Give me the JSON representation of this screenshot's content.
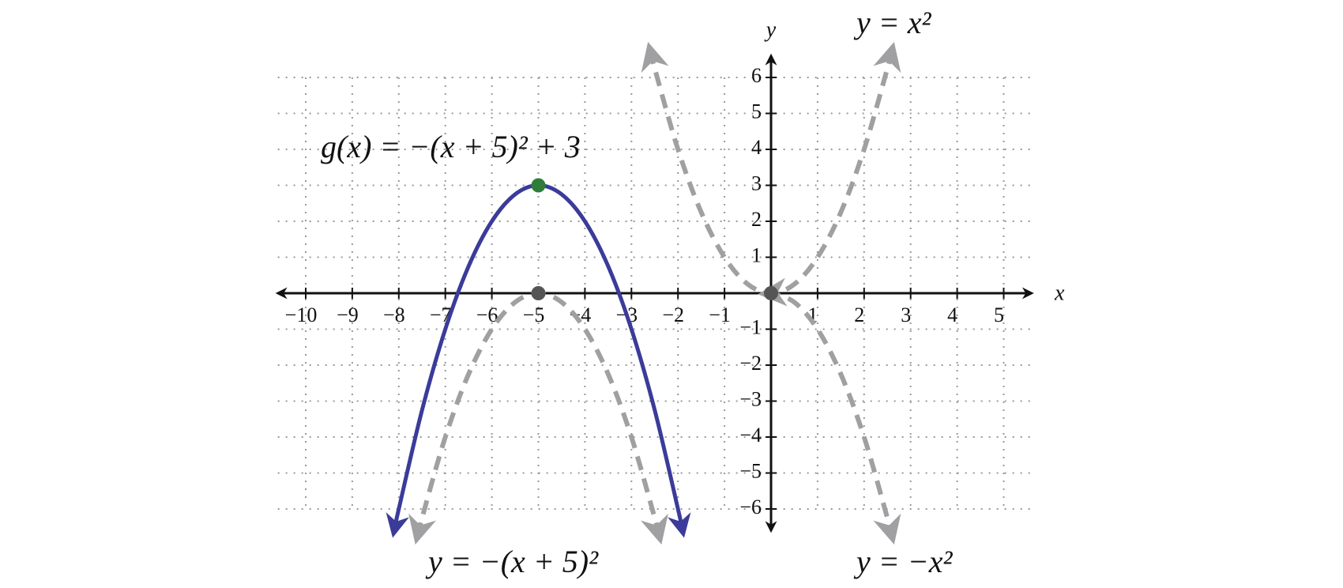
{
  "chart_data": {
    "type": "line",
    "x_label": "x",
    "y_label": "y",
    "xlim": [
      -10.6,
      5.6
    ],
    "ylim": [
      -6.6,
      6.6
    ],
    "xticks": [
      {
        "value": -10,
        "label": "−10"
      },
      {
        "value": -9,
        "label": "−9"
      },
      {
        "value": -8,
        "label": "−8"
      },
      {
        "value": -7,
        "label": "−7"
      },
      {
        "value": -6,
        "label": "−6"
      },
      {
        "value": -5,
        "label": "−5"
      },
      {
        "value": -4,
        "label": "−4"
      },
      {
        "value": -3,
        "label": "−3"
      },
      {
        "value": -2,
        "label": "−2"
      },
      {
        "value": -1,
        "label": "−1"
      },
      1,
      2,
      3,
      4,
      5
    ],
    "yticks": [
      {
        "value": -6,
        "label": "−6"
      },
      {
        "value": -5,
        "label": "−5"
      },
      {
        "value": -4,
        "label": "−4"
      },
      {
        "value": -3,
        "label": "−3"
      },
      {
        "value": -2,
        "label": "−2"
      },
      {
        "value": -1,
        "label": "−1"
      },
      1,
      2,
      3,
      4,
      5,
      6
    ],
    "grid": true,
    "series": [
      {
        "name": "g(x) = −(x + 5)² + 3",
        "color": "#3b3b9a",
        "dashed": false,
        "x": [
          -8.1,
          -8,
          -7.5,
          -7,
          -6.5,
          -6,
          -5.5,
          -5,
          -4.5,
          -4,
          -3.5,
          -3,
          -2.5,
          -2,
          -1.9
        ],
        "values": [
          -6.61,
          -6,
          -3.25,
          -1,
          0.75,
          2,
          2.75,
          3,
          2.75,
          2,
          0.75,
          -1,
          -3.25,
          -6,
          -6.61
        ]
      },
      {
        "name": "y = −(x + 5)²",
        "color": "#a0a0a3",
        "dashed": true,
        "x": [
          -7.6,
          -7.5,
          -7,
          -6.5,
          -6,
          -5.5,
          -5,
          -4.5,
          -4,
          -3.5,
          -3,
          -2.5,
          -2.4
        ],
        "values": [
          -6.76,
          -6.25,
          -4,
          -2.25,
          -1,
          -0.25,
          0,
          -0.25,
          -1,
          -2.25,
          -4,
          -6.25,
          -6.76
        ]
      },
      {
        "name": "y = x²",
        "color": "#a0a0a3",
        "dashed": true,
        "x": [
          -2.6,
          -2.5,
          -2,
          -1.5,
          -1,
          -0.5,
          0,
          0.5,
          1,
          1.5,
          2,
          2.5,
          2.6
        ],
        "values": [
          6.76,
          6.25,
          4,
          2.25,
          1,
          0.25,
          0,
          0.25,
          1,
          2.25,
          4,
          6.25,
          6.76
        ]
      },
      {
        "name": "y = −x²",
        "color": "#a0a0a3",
        "dashed": true,
        "x": [
          -0.1,
          0,
          0.5,
          1,
          1.5,
          2,
          2.5,
          2.6
        ],
        "values": [
          -0.01,
          0,
          -0.25,
          -1,
          -2.25,
          -4,
          -6.25,
          -6.76
        ]
      }
    ],
    "points": [
      {
        "x": -5,
        "y": 3,
        "color": "#2e7d3a"
      },
      {
        "x": -5,
        "y": 0,
        "color": "#555555"
      },
      {
        "x": 0,
        "y": 0,
        "color": "#555555"
      }
    ]
  }
}
